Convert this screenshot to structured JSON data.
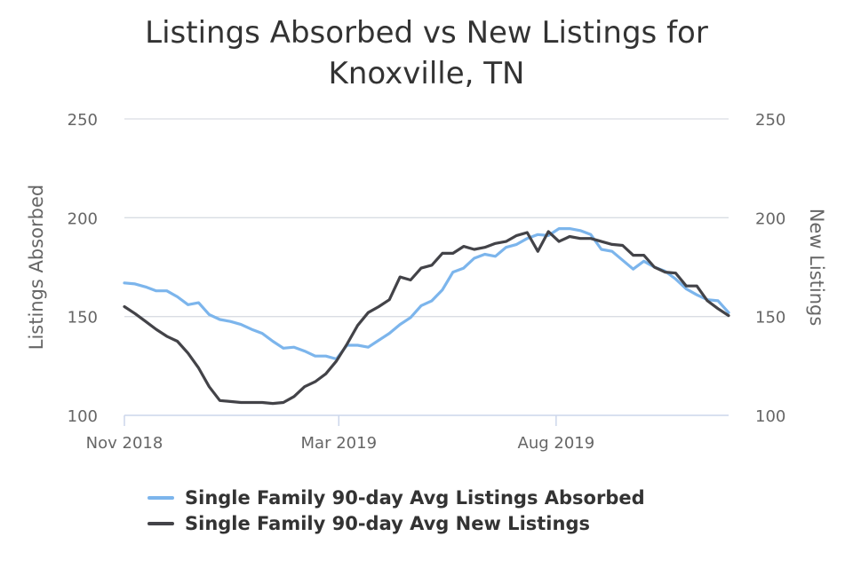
{
  "chart_data": {
    "type": "line",
    "title_line1": "Listings Absorbed vs New Listings for",
    "title_line2": "Knoxville, TN",
    "ylabel_left": "Listings Absorbed",
    "ylabel_right": "New Listings",
    "ylim": [
      100,
      250
    ],
    "yticks": [
      "250",
      "200",
      "150",
      "100"
    ],
    "yticks_right": [
      "250",
      "200",
      "150",
      "100"
    ],
    "xlim": [
      0,
      62
    ],
    "xticks": [
      {
        "label": "Nov 2018",
        "x": 0
      },
      {
        "label": "Mar 2019",
        "x": 22
      },
      {
        "label": "Aug 2019",
        "x": 44.3
      }
    ],
    "colors": {
      "absorbed": "#7cb5ec",
      "new": "#434348",
      "grid": "#d9dde3",
      "axis": "#ccd6eb"
    },
    "series": [
      {
        "name": "Single Family 90-day Avg Listings Absorbed",
        "key": "absorbed",
        "values": [
          167,
          166.5,
          165,
          163,
          163,
          160,
          156,
          157,
          151,
          148.5,
          147.5,
          146,
          143.5,
          141.5,
          137.5,
          134,
          134.5,
          132.5,
          130,
          130,
          128.5,
          135.5,
          135.5,
          134.5,
          138,
          141.5,
          146,
          149.5,
          155.5,
          158,
          163.5,
          172.5,
          174.5,
          179.5,
          181.5,
          180.5,
          185,
          186.5,
          189.5,
          191.5,
          191,
          194.5,
          194.5,
          193.5,
          191.5,
          184,
          183,
          178.5,
          174,
          178,
          175,
          173,
          169,
          164,
          161,
          158.5,
          158,
          152
        ]
      },
      {
        "name": "Single Family 90-day Avg New Listings",
        "key": "new",
        "values": [
          155,
          151.5,
          147.5,
          143.5,
          140,
          137.5,
          131.5,
          124,
          114.5,
          107.5,
          107,
          106.5,
          106.5,
          106.5,
          106,
          106.5,
          109.5,
          114.5,
          117,
          121,
          127.5,
          136,
          145.5,
          152,
          155,
          158.5,
          170,
          168.5,
          174.5,
          176,
          182,
          182,
          185.5,
          184,
          185,
          187,
          188,
          191,
          192.5,
          183,
          193,
          188,
          190.5,
          189.5,
          189.5,
          188,
          186.5,
          186,
          181,
          181,
          175,
          172.5,
          172,
          165.5,
          165.5,
          158,
          154,
          150.5
        ]
      }
    ]
  }
}
